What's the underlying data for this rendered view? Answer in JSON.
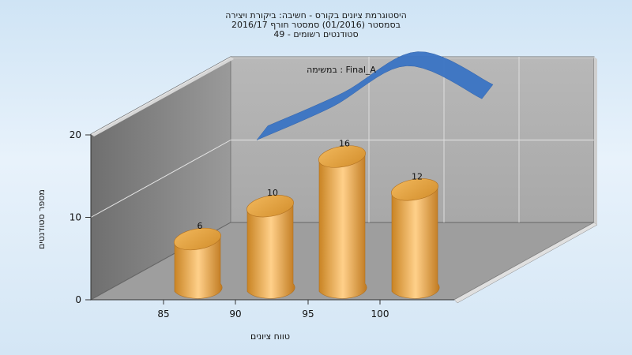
{
  "chart_data": {
    "type": "bar",
    "title_lines": [
      "היסטוגרמת ציונים בקורס - חשיבה: ביקורת ויצירה",
      "בסמסטר  (01/2016)  סמסטר חורף 2016/17",
      "סטודנטים רשומים - 49"
    ],
    "annotation": "במשימה : Final_A",
    "xlabel": "טווח ציונים",
    "ylabel": "מספר סטודנטים",
    "categories": [
      "85",
      "90",
      "95",
      "100"
    ],
    "bar_values": [
      6,
      10,
      16,
      12
    ],
    "yticks": [
      0,
      10,
      20
    ],
    "ylim": [
      0,
      20
    ],
    "grid": true,
    "bar_color": "#e8a43c",
    "line_color": "#3a74c4",
    "line_series_curve": [
      10,
      14,
      19,
      15
    ]
  }
}
